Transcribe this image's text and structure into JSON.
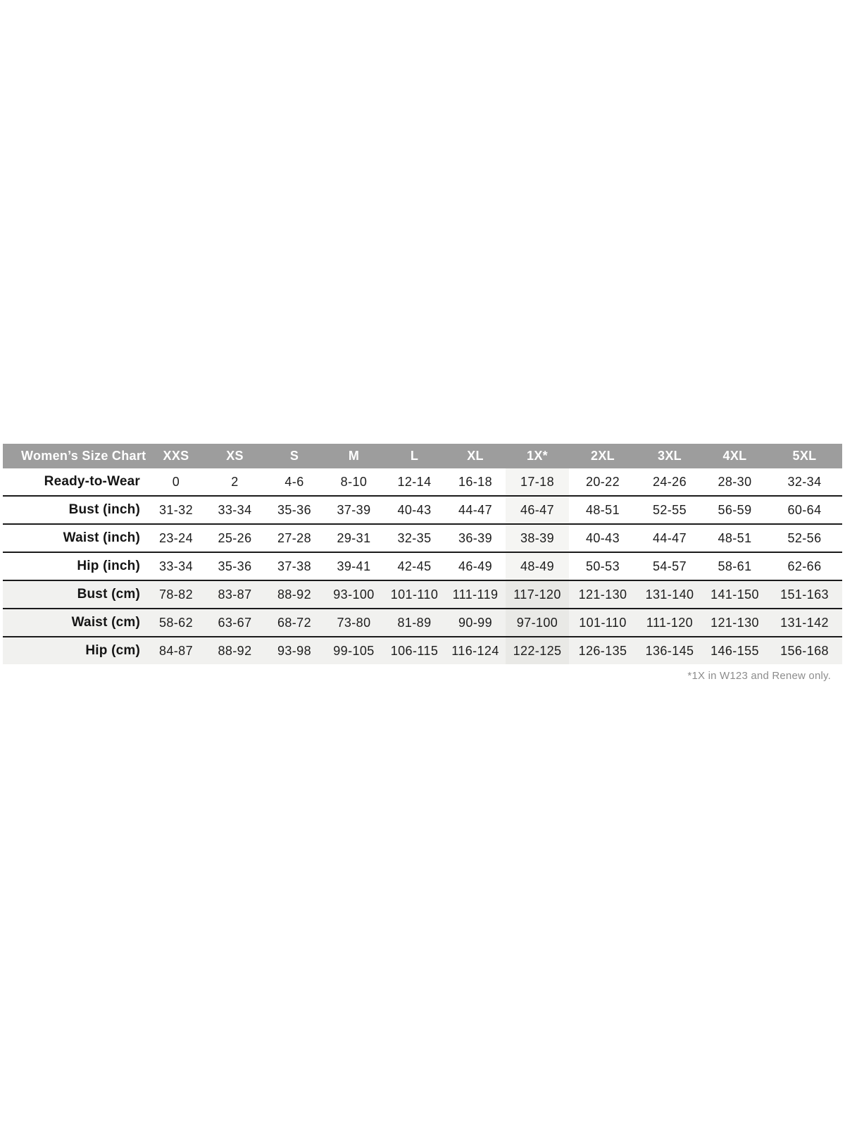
{
  "chart_data": {
    "type": "table",
    "title": "Women’s Size Chart",
    "columns": [
      "XXS",
      "XS",
      "S",
      "M",
      "L",
      "XL",
      "1X*",
      "2XL",
      "3XL",
      "4XL",
      "5XL"
    ],
    "highlight_column": "1X*",
    "highlight_column_index": 6,
    "rows": [
      {
        "label": "Ready-to-Wear",
        "shaded": false,
        "values": [
          "0",
          "2",
          "4-6",
          "8-10",
          "12-14",
          "16-18",
          "17-18",
          "20-22",
          "24-26",
          "28-30",
          "32-34"
        ]
      },
      {
        "label": "Bust (inch)",
        "shaded": false,
        "values": [
          "31-32",
          "33-34",
          "35-36",
          "37-39",
          "40-43",
          "44-47",
          "46-47",
          "48-51",
          "52-55",
          "56-59",
          "60-64"
        ]
      },
      {
        "label": "Waist (inch)",
        "shaded": false,
        "values": [
          "23-24",
          "25-26",
          "27-28",
          "29-31",
          "32-35",
          "36-39",
          "38-39",
          "40-43",
          "44-47",
          "48-51",
          "52-56"
        ]
      },
      {
        "label": "Hip (inch)",
        "shaded": false,
        "values": [
          "33-34",
          "35-36",
          "37-38",
          "39-41",
          "42-45",
          "46-49",
          "48-49",
          "50-53",
          "54-57",
          "58-61",
          "62-66"
        ]
      },
      {
        "label": "Bust (cm)",
        "shaded": true,
        "values": [
          "78-82",
          "83-87",
          "88-92",
          "93-100",
          "101-110",
          "111-119",
          "117-120",
          "121-130",
          "131-140",
          "141-150",
          "151-163"
        ]
      },
      {
        "label": "Waist (cm)",
        "shaded": true,
        "values": [
          "58-62",
          "63-67",
          "68-72",
          "73-80",
          "81-89",
          "90-99",
          "97-100",
          "101-110",
          "111-120",
          "121-130",
          "131-142"
        ]
      },
      {
        "label": "Hip (cm)",
        "shaded": true,
        "values": [
          "84-87",
          "88-92",
          "93-98",
          "99-105",
          "106-115",
          "116-124",
          "122-125",
          "126-135",
          "136-145",
          "146-155",
          "156-168"
        ]
      }
    ],
    "footnote": "*1X in W123 and Renew only.",
    "layout_hints": {
      "legend": "none",
      "grid": "horizontal-row-separators",
      "highlighted_column_shading": true
    },
    "colors": {
      "header_bg": "#9d9d9d",
      "header_text": "#ffffff",
      "shaded_row_bg": "#f1f1ef",
      "highlight_bg": "#f5f5f3",
      "highlight_bg_shaded": "#e9e9e6",
      "border": "#1b1b1b",
      "text": "#1d1d1d",
      "footnote_text": "#8d8d8d"
    }
  }
}
